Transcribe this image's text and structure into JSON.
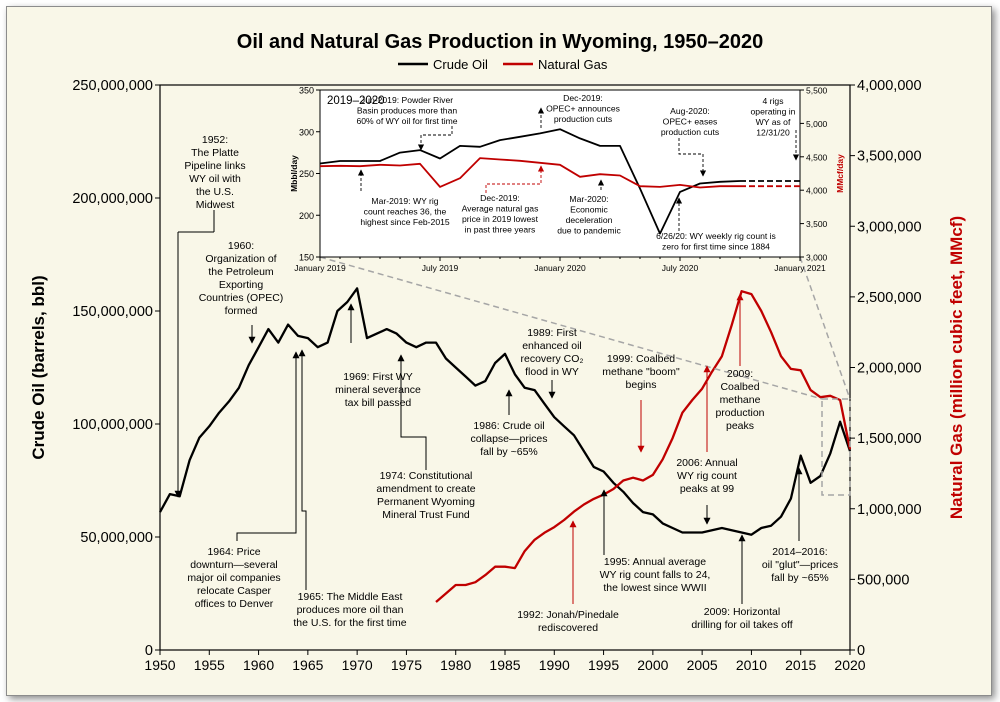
{
  "title": "Oil and Natural Gas Production in Wyoming, ",
  "title_years": "1950–2020",
  "legend": {
    "oil": "Crude Oil",
    "gas": "Natural Gas"
  },
  "colors": {
    "oil": "#000000",
    "gas": "#c00000",
    "background": "#f9f7e8",
    "inset_background": "#ffffff"
  },
  "chart_data": [
    {
      "type": "line",
      "title": "Oil and Natural Gas Production in Wyoming, 1950–2020",
      "xlabel": "",
      "ylabel": "Crude Oil (barrels, bbl)",
      "y2label": "Natural Gas (million cubic feet, MMcf)",
      "xlim": [
        1950,
        2020
      ],
      "ylim": [
        0,
        250000000
      ],
      "y2lim": [
        0,
        4000000
      ],
      "x_ticks": [
        1950,
        1955,
        1960,
        1965,
        1970,
        1975,
        1980,
        1985,
        1990,
        1995,
        2000,
        2005,
        2010,
        2015,
        2020
      ],
      "y_ticks": [
        "0",
        "50,000,000",
        "100,000,000",
        "150,000,000",
        "200,000,000",
        "250,000,000"
      ],
      "y2_ticks": [
        "0",
        "500,000",
        "1,000,000",
        "1,500,000",
        "2,000,000",
        "2,500,000",
        "3,000,000",
        "3,500,000",
        "4,000,000"
      ],
      "legend_position": "top-center",
      "series": [
        {
          "name": "Crude Oil",
          "axis": "left",
          "color": "#000000",
          "x": [
            1950,
            1951,
            1952,
            1953,
            1954,
            1955,
            1956,
            1957,
            1958,
            1959,
            1960,
            1961,
            1962,
            1963,
            1964,
            1965,
            1966,
            1967,
            1968,
            1969,
            1970,
            1971,
            1972,
            1973,
            1974,
            1975,
            1976,
            1977,
            1978,
            1979,
            1980,
            1981,
            1982,
            1983,
            1984,
            1985,
            1986,
            1987,
            1988,
            1989,
            1990,
            1991,
            1992,
            1993,
            1994,
            1995,
            1996,
            1997,
            1998,
            1999,
            2000,
            2001,
            2002,
            2003,
            2004,
            2005,
            2006,
            2007,
            2008,
            2009,
            2010,
            2011,
            2012,
            2013,
            2014,
            2015,
            2016,
            2017,
            2018,
            2019,
            2020
          ],
          "y": [
            61000000,
            69000000,
            68000000,
            84000000,
            94000000,
            99000000,
            105000000,
            110000000,
            116000000,
            126000000,
            134000000,
            142000000,
            136000000,
            144000000,
            139000000,
            138000000,
            134000000,
            136000000,
            150000000,
            154000000,
            160000000,
            138000000,
            140000000,
            142000000,
            140000000,
            136000000,
            134000000,
            136000000,
            136000000,
            129000000,
            125000000,
            121000000,
            117000000,
            119000000,
            127000000,
            131000000,
            122000000,
            116000000,
            115000000,
            109000000,
            103000000,
            99000000,
            95000000,
            88000000,
            81000000,
            79000000,
            74000000,
            70000000,
            65000000,
            61000000,
            60000000,
            56000000,
            54000000,
            52000000,
            52000000,
            52000000,
            53000000,
            54000000,
            53000000,
            52000000,
            51000000,
            54000000,
            55000000,
            59000000,
            67000000,
            86000000,
            74000000,
            77000000,
            87000000,
            101000000,
            88000000
          ]
        },
        {
          "name": "Natural Gas",
          "axis": "right",
          "color": "#c00000",
          "x": [
            1978,
            1979,
            1980,
            1981,
            1982,
            1983,
            1984,
            1985,
            1986,
            1987,
            1988,
            1989,
            1990,
            1991,
            1992,
            1993,
            1994,
            1995,
            1996,
            1997,
            1998,
            1999,
            2000,
            2001,
            2002,
            2003,
            2004,
            2005,
            2006,
            2007,
            2008,
            2009,
            2010,
            2011,
            2012,
            2013,
            2014,
            2015,
            2016,
            2017,
            2018,
            2019,
            2020
          ],
          "y": [
            340000,
            400000,
            460000,
            460000,
            480000,
            530000,
            590000,
            590000,
            580000,
            700000,
            780000,
            830000,
            870000,
            920000,
            980000,
            1030000,
            1070000,
            1100000,
            1140000,
            1200000,
            1220000,
            1200000,
            1240000,
            1350000,
            1500000,
            1680000,
            1770000,
            1850000,
            1970000,
            2080000,
            2300000,
            2540000,
            2520000,
            2400000,
            2250000,
            2080000,
            1990000,
            1980000,
            1840000,
            1790000,
            1800000,
            1770000,
            1420000
          ]
        }
      ],
      "annotations": [
        "1952:\nThe Platte\nPipeline links\nWY oil with\nthe U.S.\nMidwest",
        "1960:\nOrganization of\nthe Petroleum\nExporting\nCountries (OPEC)\nformed",
        "1964: Price\ndownturn—several\nmajor oil companies\nrelocate Casper\noffices to Denver",
        "1965: The Middle East\nproduces more oil than\nthe U.S. for the first time",
        "1969: First WY\nmineral severance\ntax bill passed",
        "1974: Constitutional\namendment to create\nPermanent Wyoming\nMineral Trust Fund",
        "1986: Crude oil\ncollapse—prices\nfall by ~65%",
        "1989: First\nenhanced oil\nrecovery CO₂\nflood in WY",
        "1992: Jonah/Pinedale\nrediscovered",
        "1995: Annual average\nWY rig count falls to 24,\nthe lowest since WWII",
        "1999: Coalbed\nmethane \"boom\"\nbegins",
        "2006: Annual\nWY rig count\npeaks at 99",
        "2009:\nCoalbed\nmethane\nproduction\npeaks",
        "2009: Horizontal\ndrilling for oil takes off",
        "2014–2016:\noil \"glut\"—prices\nfall by ~65%"
      ]
    },
    {
      "type": "line",
      "title": "2019–2020",
      "ylabel": "Mbbl/day",
      "y2label": "MMcf/day",
      "ylim": [
        150,
        350
      ],
      "y2lim": [
        3000,
        5500
      ],
      "x_ticks": [
        "January 2019",
        "July 2019",
        "January 2020",
        "July 2020",
        "January 2021"
      ],
      "y_ticks": [
        "150",
        "200",
        "250",
        "300",
        "350"
      ],
      "y2_ticks": [
        "3,000",
        "3,500",
        "4,000",
        "4,500",
        "5,000",
        "5,500"
      ],
      "series": [
        {
          "name": "Crude Oil",
          "axis": "left",
          "color": "#000000",
          "x": [
            "2019-01",
            "2019-02",
            "2019-03",
            "2019-04",
            "2019-05",
            "2019-06",
            "2019-07",
            "2019-08",
            "2019-09",
            "2019-10",
            "2019-11",
            "2019-12",
            "2020-01",
            "2020-02",
            "2020-03",
            "2020-04",
            "2020-05",
            "2020-06",
            "2020-07",
            "2020-08",
            "2020-09",
            "2020-10",
            "2020-11",
            "2020-12"
          ],
          "y": [
            262,
            265,
            265,
            265,
            275,
            278,
            268,
            283,
            282,
            290,
            294,
            298,
            303,
            292,
            283,
            283,
            232,
            178,
            228,
            238,
            240,
            241,
            241,
            241
          ],
          "projected_from": "2020-10"
        },
        {
          "name": "Natural Gas",
          "axis": "right",
          "color": "#c00000",
          "x": [
            "2019-01",
            "2019-02",
            "2019-03",
            "2019-04",
            "2019-05",
            "2019-06",
            "2019-07",
            "2019-08",
            "2019-09",
            "2019-10",
            "2019-11",
            "2019-12",
            "2020-01",
            "2020-02",
            "2020-03",
            "2020-04",
            "2020-05",
            "2020-06",
            "2020-07",
            "2020-08",
            "2020-09",
            "2020-10",
            "2020-11",
            "2020-12"
          ],
          "y": [
            4360,
            4365,
            4360,
            4380,
            4370,
            4395,
            4050,
            4180,
            4480,
            4460,
            4440,
            4410,
            4380,
            4200,
            4240,
            4220,
            4060,
            4050,
            4080,
            4040,
            4060,
            4060,
            4060,
            4060
          ],
          "projected_from": "2020-10"
        }
      ],
      "annotations": [
        "Jun-2019: Powder River\nBasin produces more than\n60% of WY oil for first time",
        "Dec-2019:\nOPEC+ announces\nproduction cuts",
        "Aug-2020:\nOPEC+ eases\nproduction cuts",
        "4 rigs\noperating in\nWY as of\n12/31/20",
        "Mar-2019: WY rig\ncount reaches 36, the\nhighest since Feb-2015",
        "Dec-2019:\nAverage natural gas\nprice in 2019 lowest\nin past three years",
        "Mar-2020:\nEconomic\ndeceleration\ndue to pandemic",
        "6/26/20: WY weekly rig count is\nzero for first time since 1884"
      ]
    }
  ]
}
